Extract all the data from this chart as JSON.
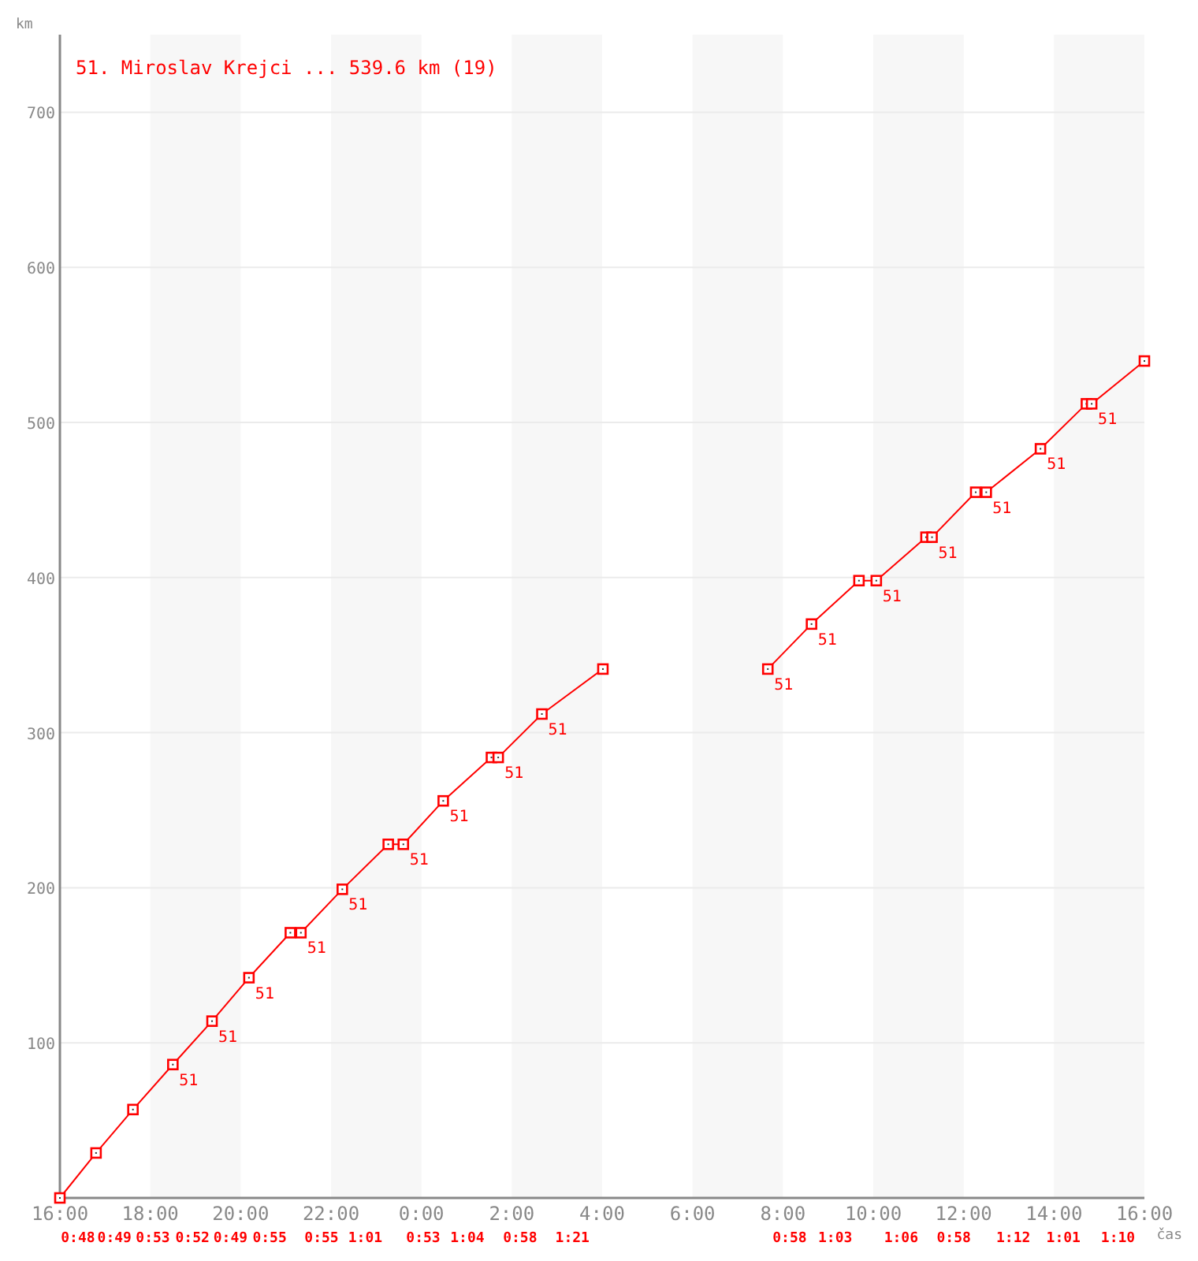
{
  "chart_data": {
    "type": "line",
    "title": "51. Miroslav Krejci ... 539.6 km (19)",
    "xlabel": "čas",
    "ylabel": "km",
    "x": [
      "2000-01-01T16:00",
      "2000-01-01T16:48",
      "2000-01-01T17:37",
      "2000-01-01T18:30",
      "2000-01-01T19:22",
      "2000-01-01T20:11",
      "2000-01-01T21:06",
      "2000-01-01T21:20",
      "2000-01-01T22:15",
      "2000-01-01T23:16",
      "2000-01-01T23:36",
      "2000-01-02T00:29",
      "2000-01-02T01:33",
      "2000-01-02T01:42",
      "2000-01-02T02:40",
      "2000-01-02T04:01",
      null,
      "2000-01-02T07:40",
      "2000-01-02T08:38",
      "2000-01-02T09:41",
      "2000-01-02T10:04",
      "2000-01-02T11:10",
      "2000-01-02T11:18",
      "2000-01-02T12:16",
      "2000-01-02T12:30",
      "2000-01-02T13:42",
      "2000-01-02T14:43",
      "2000-01-02T14:50",
      "2000-01-02T16:00"
    ],
    "series": [
      {
        "color": "#ff0000",
        "values": [
          0,
          29,
          57,
          86,
          114,
          142,
          171,
          171,
          199,
          228,
          228,
          256,
          284,
          284,
          312,
          341,
          null,
          341,
          370,
          398,
          398,
          426,
          426,
          455,
          455,
          483,
          512,
          512,
          539.6
        ]
      }
    ],
    "xlim": [
      "2000-01-01T16:00",
      "2000-01-02T16:00"
    ],
    "xticks": [
      {
        "value": "2000-01-01T16:00",
        "label": "16:00"
      },
      {
        "value": "2000-01-01T18:00",
        "label": "18:00"
      },
      {
        "value": "2000-01-01T20:00",
        "label": "20:00"
      },
      {
        "value": "2000-01-01T22:00",
        "label": "22:00"
      },
      {
        "value": "2000-01-02T00:00",
        "label": "0:00"
      },
      {
        "value": "2000-01-02T02:00",
        "label": "2:00"
      },
      {
        "value": "2000-01-02T04:00",
        "label": "4:00"
      },
      {
        "value": "2000-01-02T06:00",
        "label": "6:00"
      },
      {
        "value": "2000-01-02T08:00",
        "label": "8:00"
      },
      {
        "value": "2000-01-02T10:00",
        "label": "10:00"
      },
      {
        "value": "2000-01-02T12:00",
        "label": "12:00"
      },
      {
        "value": "2000-01-02T14:00",
        "label": "14:00"
      },
      {
        "value": "2000-01-02T16:00",
        "label": "16:00"
      }
    ],
    "ylim": [
      0,
      750
    ],
    "yticks": [
      100,
      200,
      300,
      400,
      500,
      600,
      700
    ],
    "grid": "y",
    "marker": "square",
    "line_style": "solid",
    "bands": [
      {
        "axis": "x",
        "from": "2000-01-01T18:00",
        "to": "2000-01-01T20:00",
        "color": "#f7f7f7"
      },
      {
        "axis": "x",
        "from": "2000-01-01T22:00",
        "to": "2000-01-02T00:00",
        "color": "#f7f7f7"
      },
      {
        "axis": "x",
        "from": "2000-01-02T02:00",
        "to": "2000-01-02T04:00",
        "color": "#f7f7f7"
      },
      {
        "axis": "x",
        "from": "2000-01-02T06:00",
        "to": "2000-01-02T08:00",
        "color": "#f7f7f7"
      },
      {
        "axis": "x",
        "from": "2000-01-02T10:00",
        "to": "2000-01-02T12:00",
        "color": "#f7f7f7"
      },
      {
        "axis": "x",
        "from": "2000-01-02T14:00",
        "to": "2000-01-02T16:00",
        "color": "#f7f7f7"
      }
    ],
    "annotations": [
      "0:48",
      "0:49",
      "0:53",
      "0:52",
      "0:49",
      "0:55",
      "0:55",
      "1:01",
      "0:53",
      "1:04",
      "0:58",
      "1:21",
      "0:58",
      "1:03",
      "1:06",
      "0:58",
      "1:12",
      "1:01",
      "1:10",
      {
        "text": "51",
        "x": "2000-01-01T18:30",
        "y": 86
      },
      {
        "text": "51",
        "x": "2000-01-01T19:22",
        "y": 114
      },
      {
        "text": "51",
        "x": "2000-01-01T20:11",
        "y": 142
      },
      {
        "text": "51",
        "x": "2000-01-01T21:20",
        "y": 171
      },
      {
        "text": "51",
        "x": "2000-01-01T22:15",
        "y": 199
      },
      {
        "text": "51",
        "x": "2000-01-01T23:36",
        "y": 228
      },
      {
        "text": "51",
        "x": "2000-01-02T00:29",
        "y": 256
      },
      {
        "text": "51",
        "x": "2000-01-02T01:42",
        "y": 284
      },
      {
        "text": "51",
        "x": "2000-01-02T02:40",
        "y": 312
      },
      {
        "text": "51",
        "x": "2000-01-02T07:40",
        "y": 341
      },
      {
        "text": "51",
        "x": "2000-01-02T08:38",
        "y": 370
      },
      {
        "text": "51",
        "x": "2000-01-02T10:04",
        "y": 398
      },
      {
        "text": "51",
        "x": "2000-01-02T11:18",
        "y": 426
      },
      {
        "text": "51",
        "x": "2000-01-02T12:30",
        "y": 455
      },
      {
        "text": "51",
        "x": "2000-01-02T13:42",
        "y": 483
      },
      {
        "text": "51",
        "x": "2000-01-02T14:50",
        "y": 512
      }
    ]
  }
}
